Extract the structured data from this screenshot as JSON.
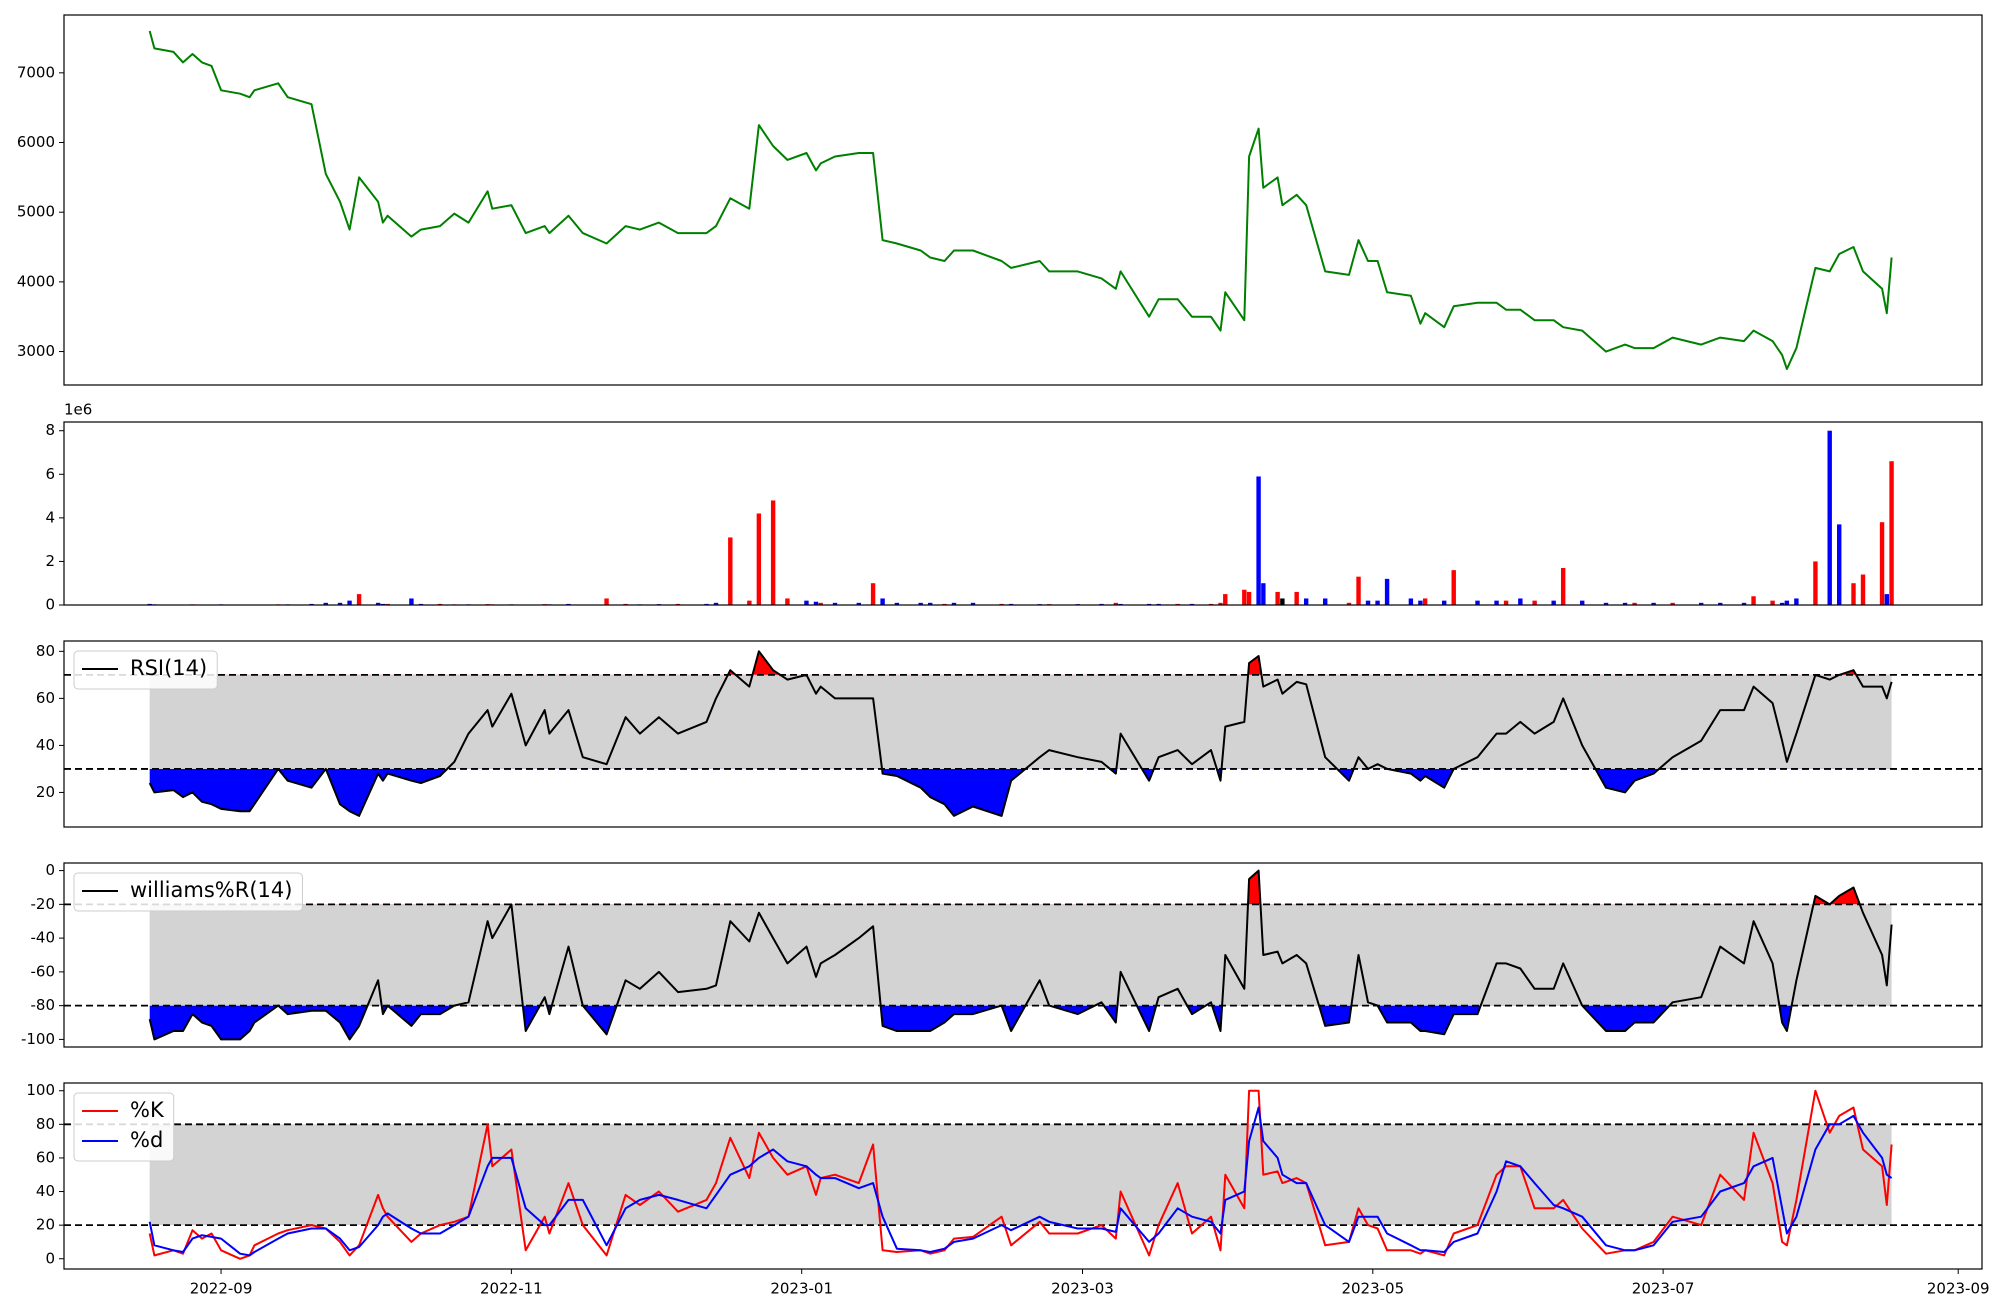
{
  "chart_data": [
    {
      "type": "line",
      "color": "#008000",
      "x": [
        "2022-08-17",
        "2022-08-18",
        "2022-08-22",
        "2022-08-24",
        "2022-08-26",
        "2022-08-28",
        "2022-08-30",
        "2022-09-01",
        "2022-09-05",
        "2022-09-07",
        "2022-09-08",
        "2022-09-13",
        "2022-09-15",
        "2022-09-20",
        "2022-09-23",
        "2022-09-26",
        "2022-09-28",
        "2022-09-30",
        "2022-10-04",
        "2022-10-05",
        "2022-10-06",
        "2022-10-11",
        "2022-10-13",
        "2022-10-17",
        "2022-10-20",
        "2022-10-23",
        "2022-10-27",
        "2022-10-28",
        "2022-11-01",
        "2022-11-04",
        "2022-11-08",
        "2022-11-09",
        "2022-11-13",
        "2022-11-16",
        "2022-11-21",
        "2022-11-25",
        "2022-11-28",
        "2022-12-02",
        "2022-12-06",
        "2022-12-12",
        "2022-12-14",
        "2022-12-17",
        "2022-12-21",
        "2022-12-23",
        "2022-12-26",
        "2022-12-29",
        "2023-01-02",
        "2023-01-04",
        "2023-01-05",
        "2023-01-08",
        "2023-01-13",
        "2023-01-16",
        "2023-01-18",
        "2023-01-21",
        "2023-01-26",
        "2023-01-28",
        "2023-01-31",
        "2023-02-02",
        "2023-02-06",
        "2023-02-12",
        "2023-02-14",
        "2023-02-20",
        "2023-02-22",
        "2023-02-28",
        "2023-03-05",
        "2023-03-08",
        "2023-03-09",
        "2023-03-15",
        "2023-03-17",
        "2023-03-21",
        "2023-03-24",
        "2023-03-28",
        "2023-03-30",
        "2023-03-31",
        "2023-04-04",
        "2023-04-05",
        "2023-04-07",
        "2023-04-08",
        "2023-04-11",
        "2023-04-12",
        "2023-04-15",
        "2023-04-17",
        "2023-04-21",
        "2023-04-26",
        "2023-04-28",
        "2023-04-30",
        "2023-05-02",
        "2023-05-04",
        "2023-05-09",
        "2023-05-11",
        "2023-05-12",
        "2023-05-16",
        "2023-05-18",
        "2023-05-23",
        "2023-05-27",
        "2023-05-29",
        "2023-06-01",
        "2023-06-04",
        "2023-06-08",
        "2023-06-10",
        "2023-06-14",
        "2023-06-19",
        "2023-06-23",
        "2023-06-25",
        "2023-06-29",
        "2023-07-03",
        "2023-07-09",
        "2023-07-13",
        "2023-07-18",
        "2023-07-20",
        "2023-07-24",
        "2023-07-26",
        "2023-07-27",
        "2023-07-29",
        "2023-08-02",
        "2023-08-05",
        "2023-08-07",
        "2023-08-10",
        "2023-08-12",
        "2023-08-16",
        "2023-08-17",
        "2023-08-18"
      ],
      "xlim": [
        "2022-07-30",
        "2023-09-06"
      ],
      "values": [
        7600,
        7350,
        7300,
        7150,
        7270,
        7150,
        7100,
        6750,
        6700,
        6650,
        6750,
        6850,
        6650,
        6550,
        5550,
        5150,
        4750,
        5500,
        5150,
        4850,
        4950,
        4650,
        4750,
        4800,
        4980,
        4850,
        5300,
        5050,
        5100,
        4700,
        4800,
        4700,
        4950,
        4700,
        4550,
        4800,
        4750,
        4850,
        4700,
        4700,
        4800,
        5200,
        5050,
        6250,
        5950,
        5750,
        5850,
        5600,
        5700,
        5800,
        5850,
        5850,
        4600,
        4550,
        4450,
        4350,
        4300,
        4450,
        4450,
        4300,
        4200,
        4300,
        4150,
        4150,
        4050,
        3900,
        4150,
        3500,
        3750,
        3750,
        3500,
        3500,
        3300,
        3850,
        3450,
        5800,
        6200,
        5350,
        5500,
        5100,
        5250,
        5100,
        4150,
        4100,
        4600,
        4300,
        4300,
        3850,
        3800,
        3400,
        3550,
        3350,
        3650,
        3700,
        3700,
        3600,
        3600,
        3450,
        3450,
        3350,
        3300,
        3000,
        3100,
        3050,
        3050,
        3200,
        3100,
        3200,
        3150,
        3300,
        3150,
        2950,
        2750,
        3050,
        4200,
        4150,
        4400,
        4500,
        4150,
        3900,
        3550,
        4350
      ],
      "ylim": [
        2520,
        7830
      ],
      "yticks": [
        3000,
        4000,
        5000,
        6000,
        7000
      ]
    },
    {
      "type": "bar",
      "offset_label": "1e6",
      "values": [
        0.05,
        0.03,
        0.02,
        0.02,
        0.03,
        0.02,
        0.02,
        0.03,
        0.02,
        0.02,
        0.02,
        0.03,
        0.03,
        0.05,
        0.1,
        0.1,
        0.2,
        0.5,
        0.1,
        0.05,
        0.05,
        0.3,
        0.05,
        0.05,
        0.03,
        0.03,
        0.04,
        0.03,
        0.03,
        0.02,
        0.04,
        0.03,
        0.05,
        0.02,
        0.3,
        0.05,
        0.03,
        0.04,
        0.05,
        0.05,
        0.1,
        3.1,
        0.2,
        4.2,
        4.8,
        0.3,
        0.2,
        0.15,
        0.1,
        0.1,
        0.1,
        1.0,
        0.3,
        0.1,
        0.1,
        0.1,
        0.05,
        0.1,
        0.1,
        0.05,
        0.05,
        0.04,
        0.04,
        0.04,
        0.05,
        0.1,
        0.05,
        0.05,
        0.05,
        0.05,
        0.05,
        0.05,
        0.1,
        0.5,
        0.7,
        0.6,
        5.9,
        1.0,
        0.6,
        0.3,
        0.6,
        0.3,
        0.3,
        0.1,
        1.3,
        0.2,
        0.2,
        1.2,
        0.3,
        0.2,
        0.3,
        0.2,
        1.6,
        0.2,
        0.2,
        0.2,
        0.3,
        0.2,
        0.2,
        1.7,
        0.2,
        0.1,
        0.1,
        0.1,
        0.1,
        0.1,
        0.1,
        0.1,
        0.1,
        0.4,
        0.2,
        0.1,
        0.2,
        0.3,
        2.0,
        8.0,
        3.7,
        1.0,
        1.4,
        3.8,
        0.5,
        6.6
      ],
      "colors": [
        "#0000ff",
        "#0000ff",
        "#ff0000",
        "#0000ff",
        "#ff0000",
        "#0000ff",
        "#ff0000",
        "#0000ff",
        "#ff0000",
        "#0000ff",
        "#ff0000",
        "#ff0000",
        "#0000ff",
        "#0000ff",
        "#0000ff",
        "#0000ff",
        "#0000ff",
        "#ff0000",
        "#0000ff",
        "#0000ff",
        "#ff0000",
        "#0000ff",
        "#0000ff",
        "#ff0000",
        "#ff0000",
        "#0000ff",
        "#ff0000",
        "#ff0000",
        "#0000ff",
        "#0000ff",
        "#ff0000",
        "#0000ff",
        "#0000ff",
        "#0000ff",
        "#ff0000",
        "#ff0000",
        "#0000ff",
        "#0000ff",
        "#ff0000",
        "#0000ff",
        "#0000ff",
        "#ff0000",
        "#ff0000",
        "#ff0000",
        "#ff0000",
        "#ff0000",
        "#0000ff",
        "#0000ff",
        "#ff0000",
        "#0000ff",
        "#0000ff",
        "#ff0000",
        "#0000ff",
        "#0000ff",
        "#0000ff",
        "#0000ff",
        "#ff0000",
        "#0000ff",
        "#0000ff",
        "#ff0000",
        "#0000ff",
        "#0000ff",
        "#ff0000",
        "#0000ff",
        "#0000ff",
        "#ff0000",
        "#0000ff",
        "#0000ff",
        "#0000ff",
        "#ff0000",
        "#0000ff",
        "#ff0000",
        "#ff0000",
        "#ff0000",
        "#ff0000",
        "#ff0000",
        "#0000ff",
        "#0000ff",
        "#ff0000",
        "#000000",
        "#ff0000",
        "#0000ff",
        "#0000ff",
        "#ff0000",
        "#ff0000",
        "#0000ff",
        "#0000ff",
        "#0000ff",
        "#0000ff",
        "#0000ff",
        "#ff0000",
        "#0000ff",
        "#ff0000",
        "#0000ff",
        "#0000ff",
        "#ff0000",
        "#0000ff",
        "#ff0000",
        "#0000ff",
        "#ff0000",
        "#0000ff",
        "#0000ff",
        "#0000ff",
        "#ff0000",
        "#0000ff",
        "#ff0000",
        "#0000ff",
        "#0000ff",
        "#0000ff",
        "#ff0000",
        "#ff0000",
        "#0000ff",
        "#0000ff",
        "#0000ff",
        "#ff0000",
        "#0000ff",
        "#0000ff",
        "#ff0000",
        "#ff0000",
        "#ff0000",
        "#0000ff",
        "#ff0000"
      ],
      "ylim": [
        0,
        8.4
      ],
      "yticks": [
        0,
        2,
        4,
        6,
        8
      ]
    },
    {
      "type": "line",
      "legend": "upper left",
      "thresholds": [
        30,
        70
      ],
      "band_color": "#d3d3d3",
      "below_color": "#0000ff",
      "above_color": "#ff0000",
      "series": [
        {
          "name": "RSI(14)",
          "color": "#000000",
          "values": [
            24,
            20,
            21,
            18,
            20,
            16,
            15,
            13,
            12,
            12,
            15,
            30,
            25,
            22,
            30,
            15,
            12,
            10,
            28,
            25,
            28,
            25,
            24,
            27,
            33,
            45,
            55,
            48,
            62,
            40,
            55,
            45,
            55,
            35,
            32,
            52,
            45,
            52,
            45,
            50,
            60,
            72,
            65,
            80,
            72,
            68,
            70,
            62,
            65,
            60,
            60,
            60,
            28,
            27,
            22,
            18,
            15,
            10,
            14,
            10,
            25,
            35,
            38,
            35,
            33,
            28,
            45,
            25,
            35,
            38,
            32,
            38,
            25,
            48,
            50,
            75,
            78,
            65,
            68,
            62,
            67,
            66,
            35,
            25,
            35,
            30,
            32,
            30,
            28,
            25,
            27,
            22,
            30,
            35,
            45,
            45,
            50,
            45,
            50,
            60,
            40,
            22,
            20,
            25,
            28,
            35,
            42,
            55,
            55,
            65,
            58,
            42,
            33,
            45,
            70,
            68,
            70,
            72,
            65,
            65,
            60,
            67
          ]
        }
      ],
      "ylim": [
        5.3,
        84.4
      ],
      "yticks": [
        20,
        40,
        60,
        80
      ]
    },
    {
      "type": "line",
      "legend": "upper left",
      "thresholds": [
        -80,
        -20
      ],
      "band_color": "#d3d3d3",
      "below_color": "#0000ff",
      "above_color": "#ff0000",
      "series": [
        {
          "name": "williams%R(14)",
          "color": "#000000",
          "values": [
            -88,
            -100,
            -95,
            -95,
            -85,
            -90,
            -92,
            -100,
            -100,
            -95,
            -90,
            -80,
            -85,
            -83,
            -83,
            -90,
            -100,
            -92,
            -65,
            -85,
            -80,
            -92,
            -85,
            -85,
            -80,
            -78,
            -30,
            -40,
            -20,
            -95,
            -75,
            -85,
            -45,
            -80,
            -97,
            -65,
            -70,
            -60,
            -72,
            -70,
            -68,
            -30,
            -42,
            -25,
            -40,
            -55,
            -45,
            -63,
            -55,
            -50,
            -40,
            -33,
            -92,
            -95,
            -95,
            -95,
            -90,
            -85,
            -85,
            -80,
            -95,
            -65,
            -80,
            -85,
            -78,
            -90,
            -60,
            -95,
            -75,
            -70,
            -85,
            -78,
            -95,
            -50,
            -70,
            -5,
            0,
            -50,
            -48,
            -55,
            -50,
            -55,
            -92,
            -90,
            -50,
            -78,
            -80,
            -90,
            -90,
            -95,
            -95,
            -97,
            -85,
            -85,
            -55,
            -55,
            -58,
            -70,
            -70,
            -55,
            -80,
            -95,
            -95,
            -90,
            -90,
            -78,
            -75,
            -45,
            -55,
            -30,
            -55,
            -90,
            -95,
            -65,
            -15,
            -20,
            -15,
            -10,
            -25,
            -50,
            -68,
            -32
          ]
        }
      ],
      "ylim": [
        -104.5,
        4.5
      ],
      "yticks": [
        -100,
        -80,
        -60,
        -40,
        -20,
        0
      ]
    },
    {
      "type": "line",
      "legend": "upper left",
      "thresholds": [
        20,
        80
      ],
      "band_color": "#d3d3d3",
      "series": [
        {
          "name": "%K",
          "color": "#ff0000",
          "values": [
            15,
            2,
            5,
            3,
            17,
            12,
            15,
            5,
            0,
            2,
            8,
            15,
            17,
            20,
            18,
            10,
            2,
            8,
            38,
            30,
            25,
            10,
            15,
            20,
            22,
            25,
            80,
            55,
            65,
            5,
            25,
            15,
            45,
            20,
            2,
            38,
            32,
            40,
            28,
            35,
            45,
            72,
            48,
            75,
            60,
            50,
            55,
            38,
            48,
            50,
            45,
            68,
            5,
            4,
            5,
            3,
            5,
            12,
            13,
            25,
            8,
            22,
            15,
            15,
            20,
            12,
            40,
            2,
            20,
            45,
            15,
            25,
            5,
            50,
            30,
            100,
            100,
            50,
            52,
            45,
            48,
            45,
            8,
            10,
            30,
            20,
            18,
            5,
            5,
            3,
            5,
            2,
            15,
            20,
            50,
            55,
            55,
            30,
            30,
            35,
            18,
            3,
            5,
            5,
            10,
            25,
            20,
            50,
            35,
            75,
            45,
            10,
            8,
            35,
            100,
            75,
            85,
            90,
            65,
            55,
            32,
            68
          ]
        },
        {
          "name": "%d",
          "color": "#0000ff",
          "values": [
            22,
            8,
            5,
            4,
            12,
            14,
            13,
            12,
            3,
            2,
            4,
            12,
            15,
            18,
            18,
            12,
            5,
            7,
            20,
            25,
            27,
            18,
            15,
            15,
            20,
            25,
            55,
            60,
            60,
            30,
            20,
            20,
            35,
            35,
            8,
            30,
            35,
            38,
            35,
            30,
            38,
            50,
            55,
            60,
            65,
            58,
            55,
            50,
            48,
            48,
            42,
            45,
            25,
            6,
            5,
            4,
            6,
            10,
            12,
            20,
            17,
            25,
            22,
            18,
            18,
            16,
            30,
            10,
            15,
            30,
            25,
            22,
            15,
            35,
            40,
            70,
            90,
            70,
            60,
            50,
            45,
            45,
            20,
            10,
            25,
            25,
            25,
            15,
            8,
            5,
            5,
            4,
            10,
            15,
            40,
            58,
            55,
            45,
            32,
            30,
            25,
            8,
            5,
            5,
            8,
            22,
            25,
            40,
            45,
            55,
            60,
            30,
            15,
            25,
            65,
            80,
            80,
            85,
            75,
            60,
            50,
            48
          ]
        }
      ],
      "ylim": [
        -6.1,
        104.6
      ],
      "yticks": [
        0,
        20,
        40,
        60,
        80,
        100
      ],
      "xticks": [
        {
          "value": "2022-09-01",
          "label": "2022-09"
        },
        {
          "value": "2022-11-01",
          "label": "2022-11"
        },
        {
          "value": "2023-01-01",
          "label": "2023-01"
        },
        {
          "value": "2023-03-01",
          "label": "2023-03"
        },
        {
          "value": "2023-05-01",
          "label": "2023-05"
        },
        {
          "value": "2023-07-01",
          "label": "2023-07"
        },
        {
          "value": "2023-09-01",
          "label": "2023-09"
        }
      ]
    }
  ]
}
